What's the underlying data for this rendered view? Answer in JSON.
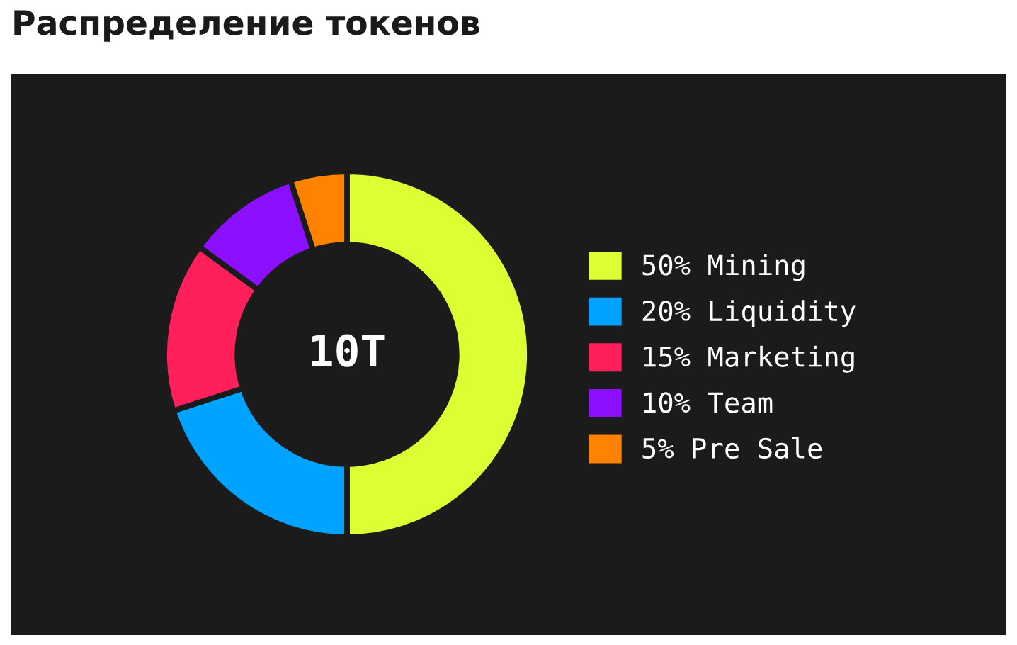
{
  "chart_data": {
    "type": "donut",
    "title": "Распределение токенов",
    "categories": [
      "50% Mining",
      "20% Liquidity",
      "15% Marketing",
      "10% Team",
      "5% Pre Sale"
    ],
    "values": [
      50,
      20,
      15,
      10,
      5
    ],
    "colors": [
      "#dcff33",
      "#00a3ff",
      "#ff1f5a",
      "#8c0fff",
      "#ff8200"
    ],
    "annotations": [
      "10T"
    ],
    "legend": "right"
  }
}
